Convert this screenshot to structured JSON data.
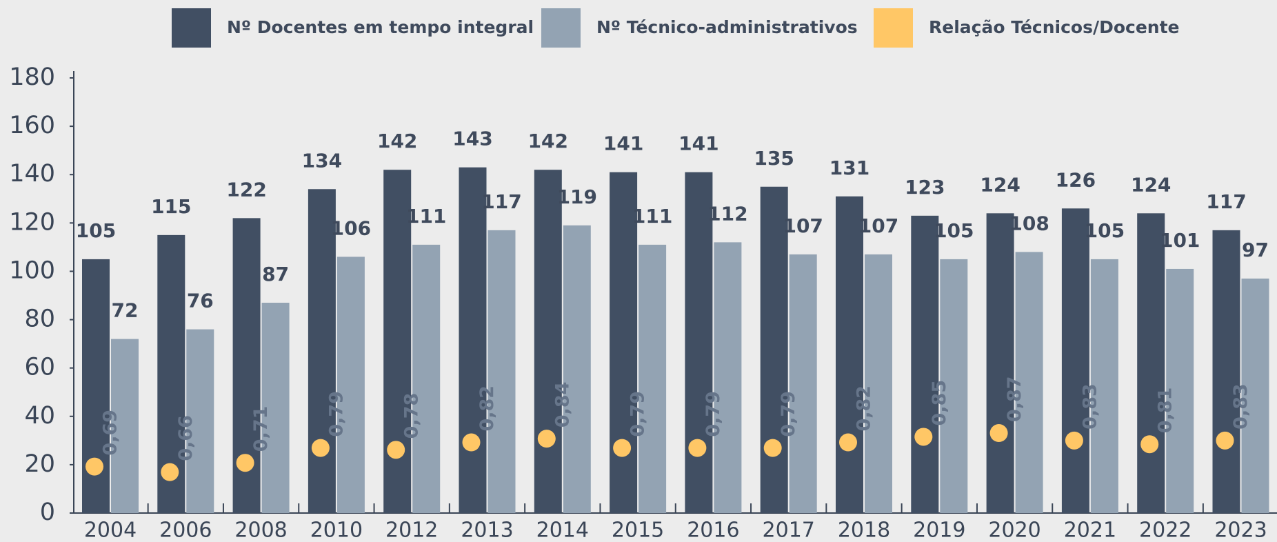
{
  "chart_data": {
    "type": "bar",
    "categories": [
      "2004",
      "2006",
      "2008",
      "2010",
      "2012",
      "2013",
      "2014",
      "2015",
      "2016",
      "2017",
      "2018",
      "2019",
      "2020",
      "2021",
      "2022",
      "2023"
    ],
    "series": [
      {
        "name": "Nº Docentes em tempo integral",
        "color": "#414f63",
        "values": [
          105,
          115,
          122,
          134,
          142,
          143,
          142,
          141,
          141,
          135,
          131,
          123,
          124,
          126,
          124,
          117
        ]
      },
      {
        "name": "Nº Técnico-administrativos",
        "color": "#93a3b3",
        "values": [
          72,
          76,
          87,
          106,
          111,
          117,
          119,
          111,
          112,
          107,
          107,
          105,
          108,
          105,
          101,
          97
        ]
      },
      {
        "name": "Relação Técnicos/Docente",
        "color": "#ffc766",
        "type": "scatter",
        "axis": "y2",
        "values": [
          0.69,
          0.66,
          0.71,
          0.79,
          0.78,
          0.82,
          0.84,
          0.79,
          0.79,
          0.79,
          0.82,
          0.85,
          0.87,
          0.83,
          0.81,
          0.83
        ],
        "value_labels": [
          "0,69",
          "0,66",
          "0,71",
          "0,79",
          "0,78",
          "0,82",
          "0,84",
          "0,79",
          "0,79",
          "0,79",
          "0,82",
          "0,85",
          "0,87",
          "0,83",
          "0,81",
          "0,83"
        ]
      }
    ],
    "ylim": [
      0,
      180
    ],
    "yticks": [
      0,
      20,
      40,
      60,
      80,
      100,
      120,
      140,
      160,
      180
    ],
    "y2lim": [
      0.44,
      2.78
    ],
    "legend": "top",
    "grid": false
  }
}
